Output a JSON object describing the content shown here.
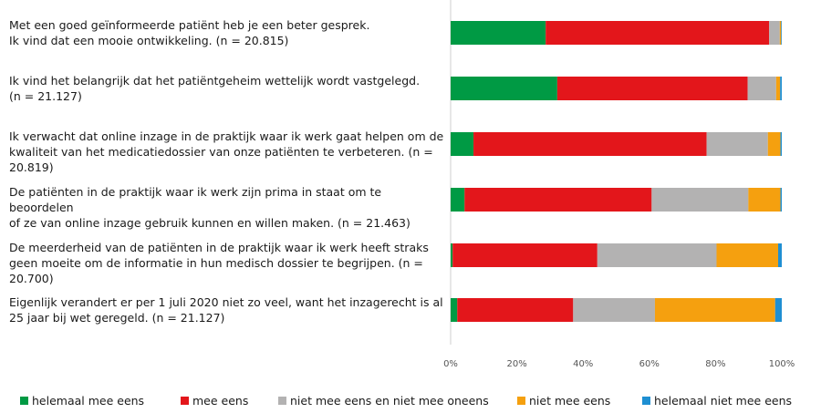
{
  "chart_data": {
    "type": "bar",
    "orientation": "horizontal",
    "stacked": true,
    "percent": true,
    "categories": [
      {
        "line1": "Met een goed geïnformeerde patiënt heb je een beter gesprek.",
        "line2": "Ik vind dat een mooie ontwikkeling. (n = 20.815)"
      },
      {
        "line1": "Ik vind het belangrijk dat het patiëntgeheim wettelijk wordt vastgelegd.",
        "line2": "(n = 21.127)"
      },
      {
        "line1": "Ik verwacht dat online inzage in de praktijk waar ik werk gaat helpen om de",
        "line2": "kwaliteit van het medicatiedossier van onze patiënten te verbeteren. (n = 20.819)"
      },
      {
        "line1": "De patiënten in de praktijk waar ik werk zijn prima in staat om te beoordelen",
        "line2": "of ze van online inzage gebruik kunnen en willen maken. (n = 21.463)"
      },
      {
        "line1": "De meerderheid van de patiënten in de praktijk waar ik werk heeft straks",
        "line2": "geen moeite om de informatie in hun medisch dossier te begrijpen. (n = 20.700)"
      },
      {
        "line1": "Eigenlijk verandert er per 1 juli 2020 niet zo veel, want het inzagerecht is al",
        "line2": "25 jaar bij wet geregeld. (n = 21.127)"
      }
    ],
    "series": [
      {
        "name": "helemaal mee eens",
        "color": "#009a44",
        "values": [
          28.7,
          32.2,
          6.9,
          4.2,
          0.6,
          2.0
        ]
      },
      {
        "name": "mee eens",
        "color": "#e3161b",
        "values": [
          67.5,
          57.5,
          70.4,
          56.5,
          43.7,
          35.0
        ]
      },
      {
        "name": "niet mee eens en niet mee oneens",
        "color": "#b3b2b2",
        "values": [
          3.2,
          8.6,
          18.5,
          29.2,
          36.0,
          24.7
        ]
      },
      {
        "name": "niet mee eens",
        "color": "#f5a00f",
        "values": [
          0.4,
          1.2,
          3.8,
          9.7,
          18.6,
          36.3
        ]
      },
      {
        "name": "helemaal niet mee eens",
        "color": "#1f8fd2",
        "values": [
          0.2,
          0.5,
          0.4,
          0.4,
          1.1,
          2.0
        ]
      }
    ],
    "xticks": [
      "0%",
      "20%",
      "40%",
      "60%",
      "80%",
      "100%"
    ],
    "xlim": [
      0,
      100
    ],
    "grid": false
  }
}
